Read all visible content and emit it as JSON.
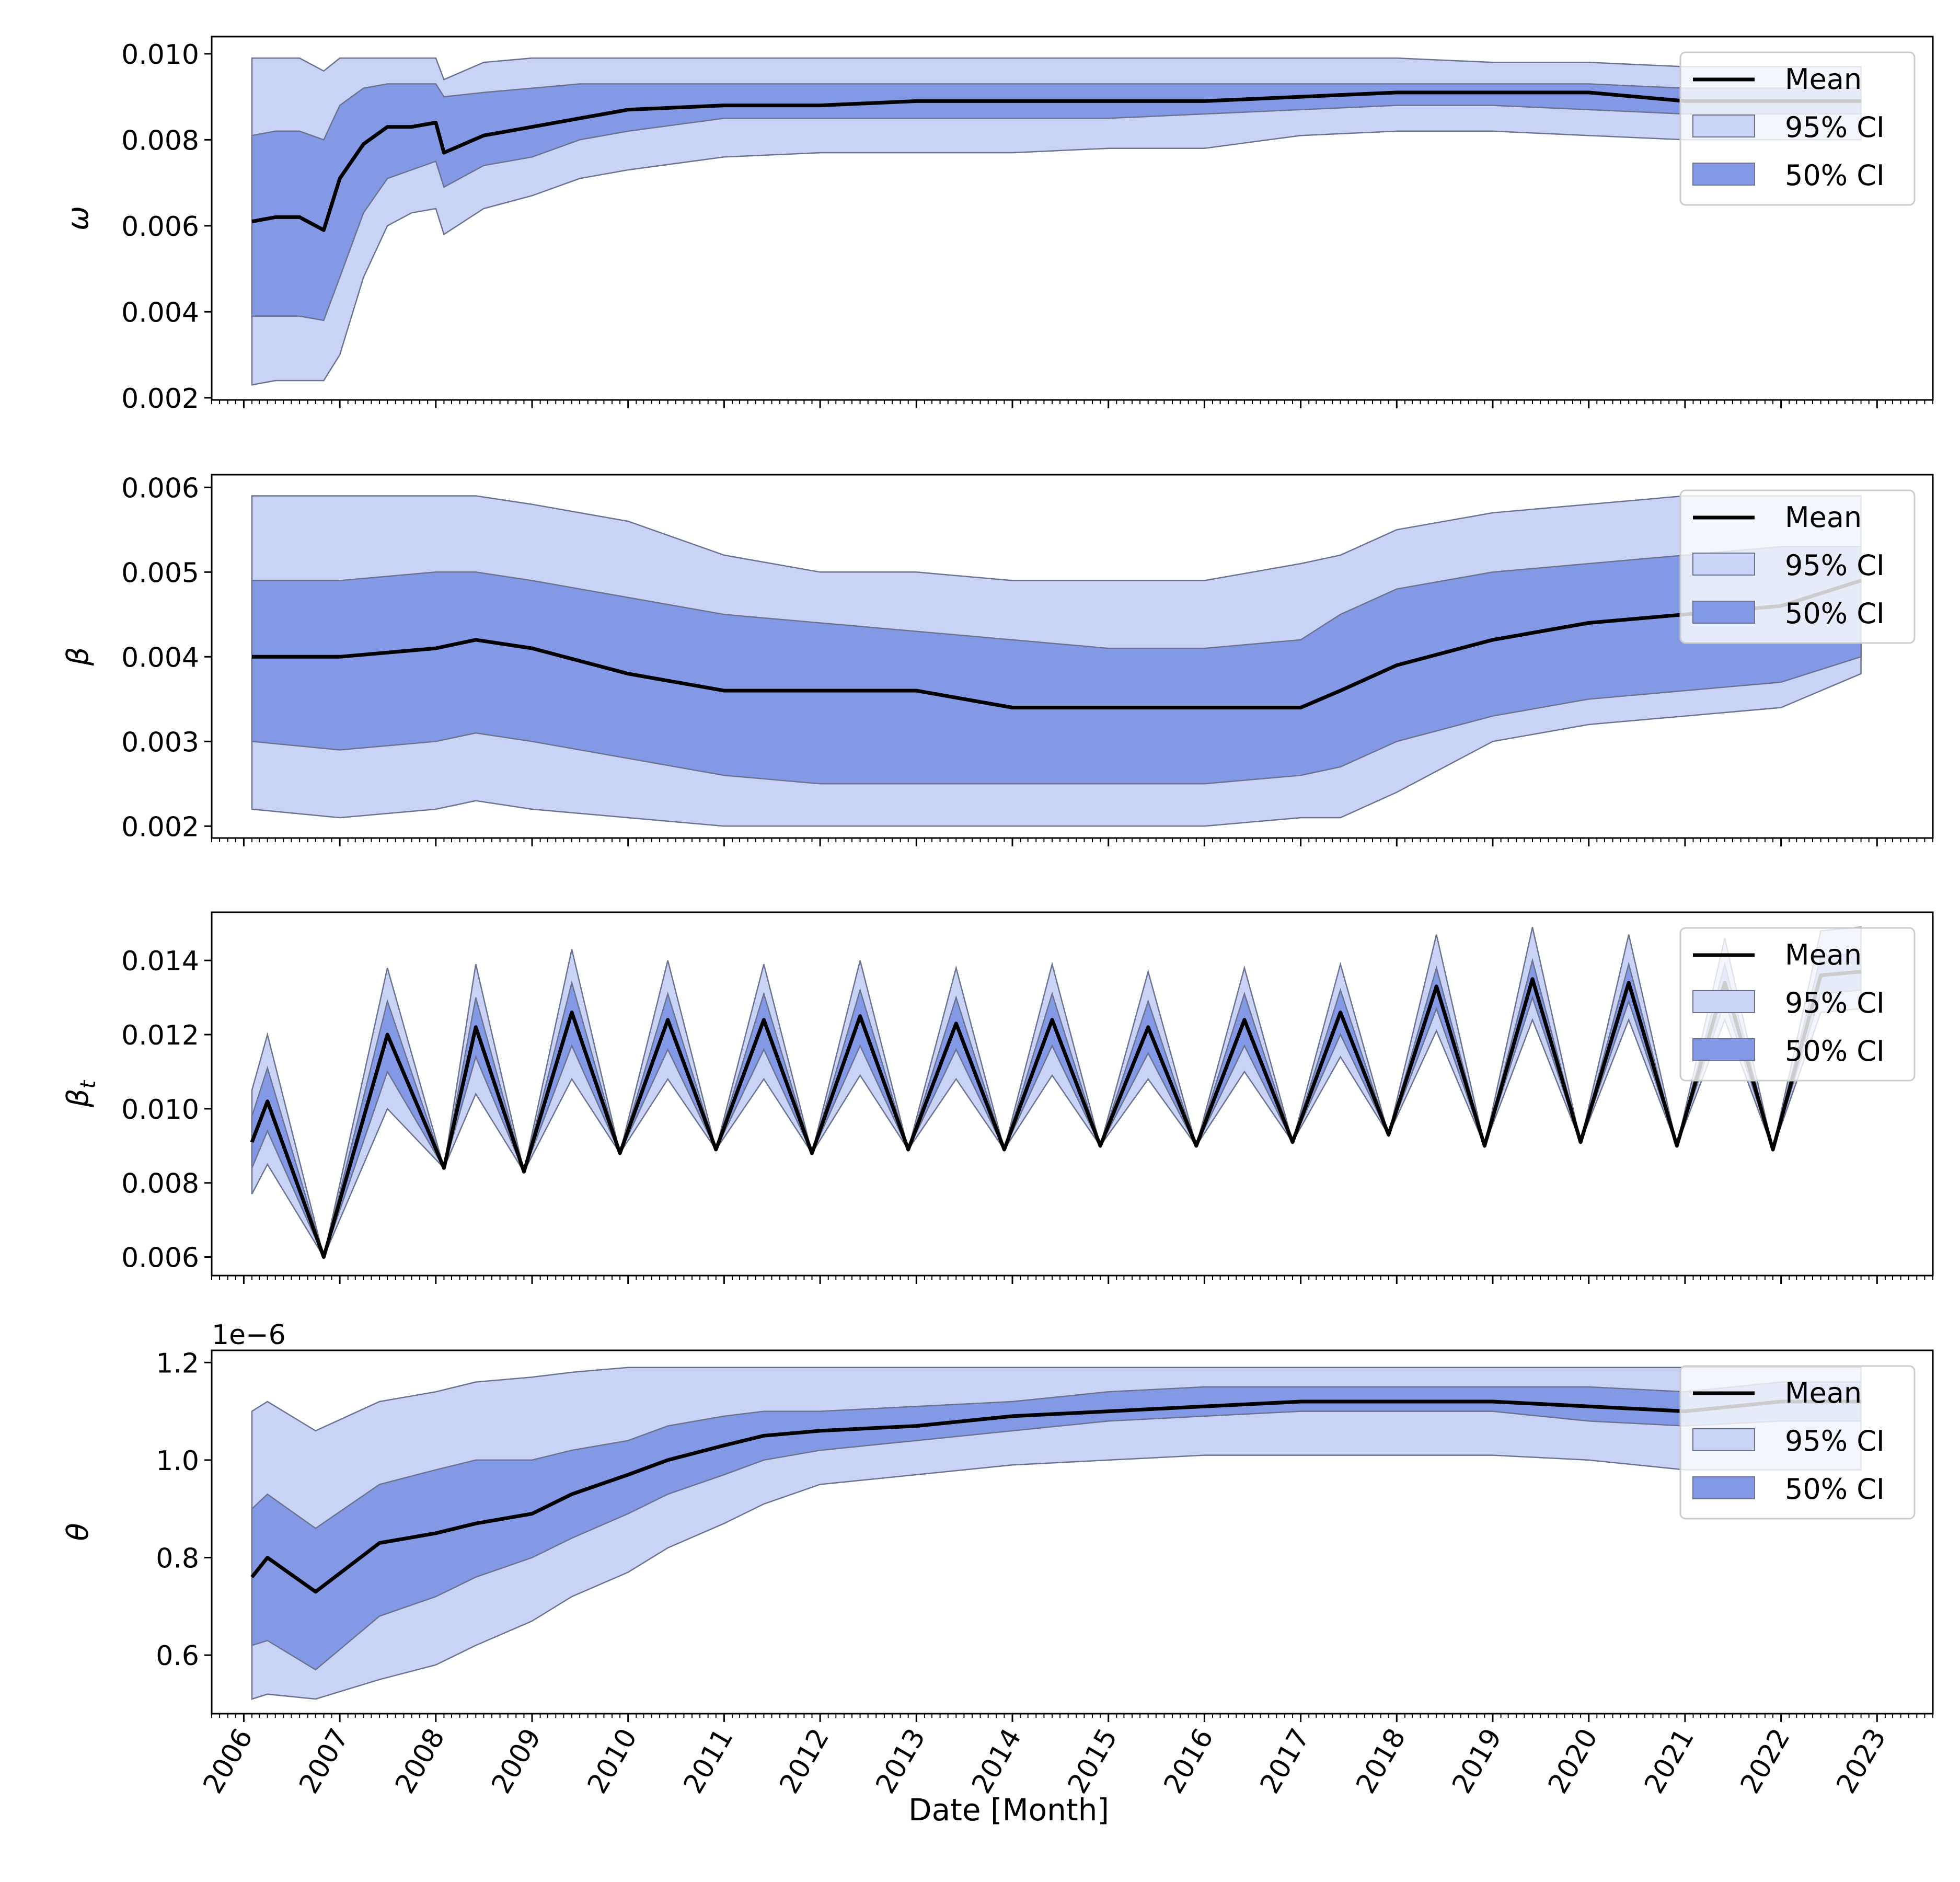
{
  "figure": {
    "xlabel": "Date [Month]",
    "x_tick_labels": [
      "2006",
      "2007",
      "2008",
      "2009",
      "2010",
      "2011",
      "2012",
      "2013",
      "2014",
      "2015",
      "2016",
      "2017",
      "2018",
      "2019",
      "2020",
      "2021",
      "2022",
      "2023"
    ],
    "legend_labels": {
      "mean": "Mean",
      "ci95": "95% CI",
      "ci50": "50% CI"
    },
    "colors": {
      "ci95": "#c8d3f5",
      "ci50": "#8399e6",
      "mean": "#000000",
      "edge": "#6b7390"
    }
  },
  "chart_data": [
    {
      "type": "area",
      "ylabel": "ω",
      "ylim": [
        0.00195,
        0.0104
      ],
      "yticks": [
        "0.002",
        "0.004",
        "0.006",
        "0.008",
        "0.010"
      ],
      "ytick_values": [
        0.002,
        0.004,
        0.006,
        0.008,
        0.01
      ],
      "legend": "top-right",
      "x": [
        "2006-02",
        "2006-05",
        "2006-08",
        "2006-11",
        "2007-01",
        "2007-04",
        "2007-07",
        "2007-10",
        "2008-01",
        "2008-02",
        "2008-07",
        "2009-01",
        "2009-07",
        "2010-01",
        "2011-01",
        "2012-01",
        "2013-01",
        "2014-01",
        "2015-01",
        "2016-01",
        "2017-01",
        "2018-01",
        "2019-01",
        "2020-01",
        "2021-01",
        "2022-01",
        "2022-11"
      ],
      "mean": [
        0.0061,
        0.0062,
        0.0062,
        0.0059,
        0.0071,
        0.0079,
        0.0083,
        0.0083,
        0.0084,
        0.0077,
        0.0081,
        0.0083,
        0.0085,
        0.0087,
        0.0088,
        0.0088,
        0.0089,
        0.0089,
        0.0089,
        0.0089,
        0.009,
        0.0091,
        0.0091,
        0.0091,
        0.0089,
        0.0089,
        0.0089
      ],
      "ci50_low": [
        0.0039,
        0.0039,
        0.0039,
        0.0038,
        0.0048,
        0.0063,
        0.0071,
        0.0073,
        0.0075,
        0.0069,
        0.0074,
        0.0076,
        0.008,
        0.0082,
        0.0085,
        0.0085,
        0.0085,
        0.0085,
        0.0085,
        0.0086,
        0.0087,
        0.0088,
        0.0088,
        0.0087,
        0.0086,
        0.0086,
        0.0086
      ],
      "ci50_high": [
        0.0081,
        0.0082,
        0.0082,
        0.008,
        0.0088,
        0.0092,
        0.0093,
        0.0093,
        0.0093,
        0.009,
        0.0091,
        0.0092,
        0.0093,
        0.0093,
        0.0093,
        0.0093,
        0.0093,
        0.0093,
        0.0093,
        0.0093,
        0.0093,
        0.0093,
        0.0093,
        0.0093,
        0.0092,
        0.0092,
        0.0092
      ],
      "ci95_low": [
        0.0023,
        0.0024,
        0.0024,
        0.0024,
        0.003,
        0.0048,
        0.006,
        0.0063,
        0.0064,
        0.0058,
        0.0064,
        0.0067,
        0.0071,
        0.0073,
        0.0076,
        0.0077,
        0.0077,
        0.0077,
        0.0078,
        0.0078,
        0.0081,
        0.0082,
        0.0082,
        0.0081,
        0.008,
        0.008,
        0.008
      ],
      "ci95_high": [
        0.0099,
        0.0099,
        0.0099,
        0.0096,
        0.0099,
        0.0099,
        0.0099,
        0.0099,
        0.0099,
        0.0094,
        0.0098,
        0.0099,
        0.0099,
        0.0099,
        0.0099,
        0.0099,
        0.0099,
        0.0099,
        0.0099,
        0.0099,
        0.0099,
        0.0099,
        0.0098,
        0.0098,
        0.0097,
        0.0097,
        0.0097
      ]
    },
    {
      "type": "area",
      "ylabel": "β",
      "ylim": [
        0.00186,
        0.00615
      ],
      "yticks": [
        "0.002",
        "0.003",
        "0.004",
        "0.005",
        "0.006"
      ],
      "ytick_values": [
        0.002,
        0.003,
        0.004,
        0.005,
        0.006
      ],
      "legend": "top-right",
      "x": [
        "2006-02",
        "2007-01",
        "2008-01",
        "2008-06",
        "2009-01",
        "2010-01",
        "2011-01",
        "2012-01",
        "2013-01",
        "2014-01",
        "2015-01",
        "2016-01",
        "2017-01",
        "2017-06",
        "2018-01",
        "2019-01",
        "2020-01",
        "2021-01",
        "2022-01",
        "2022-11"
      ],
      "mean": [
        0.004,
        0.004,
        0.0041,
        0.0042,
        0.0041,
        0.0038,
        0.0036,
        0.0036,
        0.0036,
        0.0034,
        0.0034,
        0.0034,
        0.0034,
        0.0036,
        0.0039,
        0.0042,
        0.0044,
        0.0045,
        0.0046,
        0.0049
      ],
      "ci50_low": [
        0.003,
        0.0029,
        0.003,
        0.0031,
        0.003,
        0.0028,
        0.0026,
        0.0025,
        0.0025,
        0.0025,
        0.0025,
        0.0025,
        0.0026,
        0.0027,
        0.003,
        0.0033,
        0.0035,
        0.0036,
        0.0037,
        0.004
      ],
      "ci50_high": [
        0.0049,
        0.0049,
        0.005,
        0.005,
        0.0049,
        0.0047,
        0.0045,
        0.0044,
        0.0043,
        0.0042,
        0.0041,
        0.0041,
        0.0042,
        0.0045,
        0.0048,
        0.005,
        0.0051,
        0.0052,
        0.0053,
        0.0053
      ],
      "ci95_low": [
        0.0022,
        0.0021,
        0.0022,
        0.0023,
        0.0022,
        0.0021,
        0.002,
        0.002,
        0.002,
        0.002,
        0.002,
        0.002,
        0.0021,
        0.0021,
        0.0024,
        0.003,
        0.0032,
        0.0033,
        0.0034,
        0.0038
      ],
      "ci95_high": [
        0.0059,
        0.0059,
        0.0059,
        0.0059,
        0.0058,
        0.0056,
        0.0052,
        0.005,
        0.005,
        0.0049,
        0.0049,
        0.0049,
        0.0051,
        0.0052,
        0.0055,
        0.0057,
        0.0058,
        0.0059,
        0.0059,
        0.0059
      ]
    },
    {
      "type": "area",
      "ylabel": "βt",
      "ylim": [
        0.0055,
        0.0153
      ],
      "yticks": [
        "0.006",
        "0.008",
        "0.010",
        "0.012",
        "0.014"
      ],
      "ytick_values": [
        0.006,
        0.008,
        0.01,
        0.012,
        0.014
      ],
      "legend": "top-right",
      "x": [
        "2006-02",
        "2006-04",
        "2006-11",
        "2007-07",
        "2008-02",
        "2008-06",
        "2008-12",
        "2009-06",
        "2009-12",
        "2010-06",
        "2010-12",
        "2011-06",
        "2011-12",
        "2012-06",
        "2012-12",
        "2013-06",
        "2013-12",
        "2014-06",
        "2014-12",
        "2015-06",
        "2015-12",
        "2016-06",
        "2016-12",
        "2017-06",
        "2017-12",
        "2018-06",
        "2018-12",
        "2019-06",
        "2019-12",
        "2020-06",
        "2020-12",
        "2021-06",
        "2021-12",
        "2022-06",
        "2022-11"
      ],
      "mean": [
        0.0091,
        0.0102,
        0.006,
        0.012,
        0.0084,
        0.0122,
        0.0083,
        0.0126,
        0.0088,
        0.0124,
        0.0089,
        0.0124,
        0.0088,
        0.0125,
        0.0089,
        0.0123,
        0.0089,
        0.0124,
        0.009,
        0.0122,
        0.009,
        0.0124,
        0.0091,
        0.0126,
        0.0093,
        0.0133,
        0.009,
        0.0135,
        0.0091,
        0.0134,
        0.009,
        0.0134,
        0.0089,
        0.0136,
        0.0137
      ],
      "ci50_low": [
        0.0084,
        0.0094,
        0.006,
        0.011,
        0.0084,
        0.0114,
        0.0083,
        0.0117,
        0.0088,
        0.0116,
        0.0089,
        0.0116,
        0.0088,
        0.0117,
        0.0089,
        0.0116,
        0.0089,
        0.0117,
        0.009,
        0.0115,
        0.009,
        0.0117,
        0.0091,
        0.012,
        0.0093,
        0.0127,
        0.009,
        0.013,
        0.0091,
        0.0129,
        0.009,
        0.0129,
        0.0089,
        0.0131,
        0.0132
      ],
      "ci50_high": [
        0.0098,
        0.0111,
        0.006,
        0.0129,
        0.0084,
        0.013,
        0.0083,
        0.0134,
        0.0088,
        0.0131,
        0.0089,
        0.0131,
        0.0088,
        0.0132,
        0.0089,
        0.013,
        0.0089,
        0.0131,
        0.009,
        0.0129,
        0.009,
        0.0131,
        0.0091,
        0.0132,
        0.0093,
        0.0138,
        0.009,
        0.014,
        0.0091,
        0.0139,
        0.009,
        0.0139,
        0.0089,
        0.0141,
        0.0142
      ],
      "ci95_low": [
        0.0077,
        0.0085,
        0.006,
        0.01,
        0.0084,
        0.0104,
        0.0083,
        0.0108,
        0.0088,
        0.0108,
        0.0089,
        0.0108,
        0.0088,
        0.0109,
        0.0089,
        0.0108,
        0.0089,
        0.0109,
        0.009,
        0.0108,
        0.009,
        0.011,
        0.0091,
        0.0114,
        0.0093,
        0.0121,
        0.009,
        0.0124,
        0.0091,
        0.0124,
        0.009,
        0.0124,
        0.0089,
        0.0126,
        0.0127
      ],
      "ci95_high": [
        0.0105,
        0.012,
        0.006,
        0.0138,
        0.0084,
        0.0139,
        0.0083,
        0.0143,
        0.0088,
        0.014,
        0.0089,
        0.0139,
        0.0088,
        0.014,
        0.0089,
        0.0138,
        0.0089,
        0.0139,
        0.009,
        0.0137,
        0.009,
        0.0138,
        0.0091,
        0.0139,
        0.0093,
        0.0147,
        0.009,
        0.0149,
        0.0091,
        0.0147,
        0.009,
        0.0146,
        0.0089,
        0.0148,
        0.0149
      ]
    },
    {
      "type": "area",
      "ylabel": "θ",
      "scale_label": "1e−6",
      "ylim": [
        0.48,
        1.225
      ],
      "yticks": [
        "0.6",
        "0.8",
        "1.0",
        "1.2"
      ],
      "ytick_values": [
        0.6,
        0.8,
        1.0,
        1.2
      ],
      "legend": "top-right",
      "x": [
        "2006-02",
        "2006-04",
        "2006-10",
        "2007-06",
        "2008-01",
        "2008-06",
        "2009-01",
        "2009-06",
        "2010-01",
        "2010-06",
        "2011-01",
        "2011-06",
        "2012-01",
        "2013-01",
        "2014-01",
        "2015-01",
        "2016-01",
        "2017-01",
        "2018-01",
        "2019-01",
        "2020-01",
        "2021-01",
        "2022-01",
        "2022-11"
      ],
      "mean": [
        0.76,
        0.8,
        0.73,
        0.83,
        0.85,
        0.87,
        0.89,
        0.93,
        0.97,
        1.0,
        1.03,
        1.05,
        1.06,
        1.07,
        1.09,
        1.1,
        1.11,
        1.12,
        1.12,
        1.12,
        1.11,
        1.1,
        1.12,
        1.12
      ],
      "ci50_low": [
        0.62,
        0.63,
        0.57,
        0.68,
        0.72,
        0.76,
        0.8,
        0.84,
        0.89,
        0.93,
        0.97,
        1.0,
        1.02,
        1.04,
        1.06,
        1.08,
        1.09,
        1.1,
        1.1,
        1.1,
        1.08,
        1.07,
        1.08,
        1.08
      ],
      "ci50_high": [
        0.9,
        0.93,
        0.86,
        0.95,
        0.98,
        1.0,
        1.0,
        1.02,
        1.04,
        1.07,
        1.09,
        1.1,
        1.1,
        1.11,
        1.12,
        1.14,
        1.15,
        1.15,
        1.15,
        1.15,
        1.15,
        1.14,
        1.16,
        1.16
      ],
      "ci95_low": [
        0.51,
        0.52,
        0.51,
        0.55,
        0.58,
        0.62,
        0.67,
        0.72,
        0.77,
        0.82,
        0.87,
        0.91,
        0.95,
        0.97,
        0.99,
        1.0,
        1.01,
        1.01,
        1.01,
        1.01,
        1.0,
        0.98,
        0.98,
        0.98
      ],
      "ci95_high": [
        1.1,
        1.12,
        1.06,
        1.12,
        1.14,
        1.16,
        1.17,
        1.18,
        1.19,
        1.19,
        1.19,
        1.19,
        1.19,
        1.19,
        1.19,
        1.19,
        1.19,
        1.19,
        1.19,
        1.19,
        1.19,
        1.19,
        1.19,
        1.19
      ]
    }
  ]
}
